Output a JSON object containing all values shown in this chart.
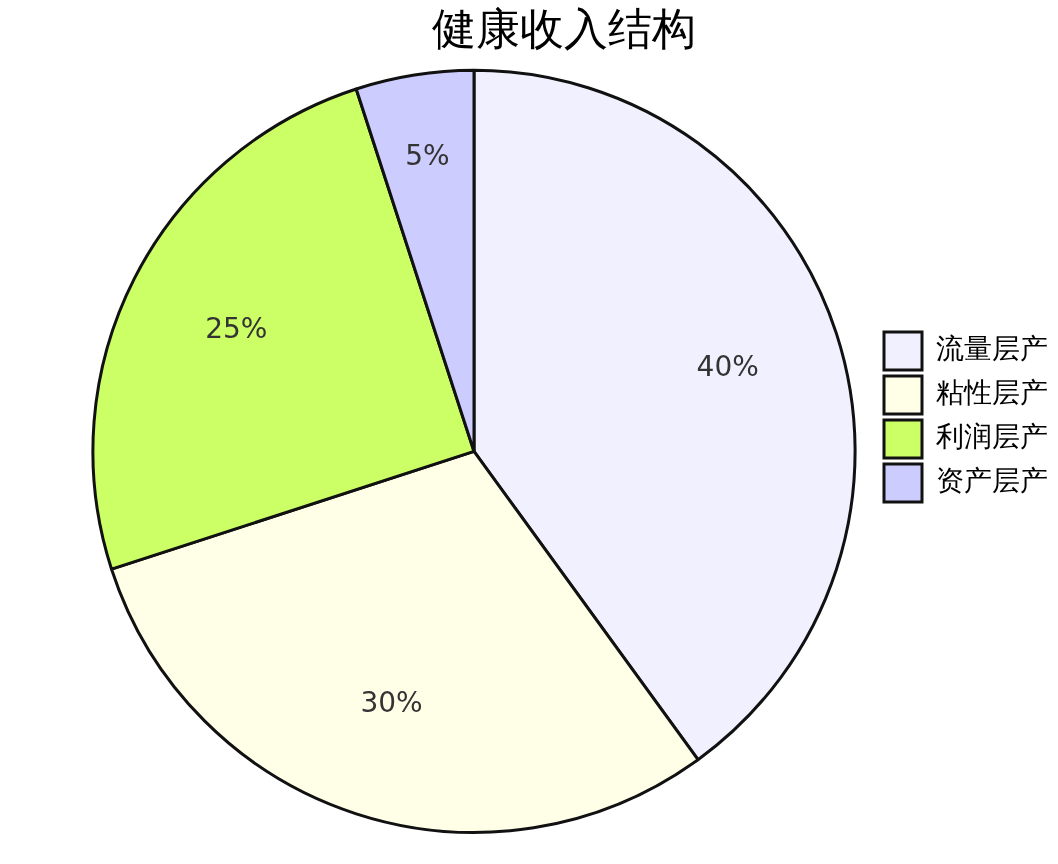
{
  "chart_data": {
    "type": "pie",
    "title": "健康收入结构",
    "categories": [
      "流量层产",
      "粘性层产",
      "利润层产",
      "资产层产"
    ],
    "values": [
      40,
      30,
      25,
      5
    ],
    "value_labels": [
      "40%",
      "30%",
      "25%",
      "5%"
    ],
    "colors": [
      "#f0f0ff",
      "#ffffe8",
      "#ccff66",
      "#ccccff"
    ],
    "legend": "right"
  }
}
